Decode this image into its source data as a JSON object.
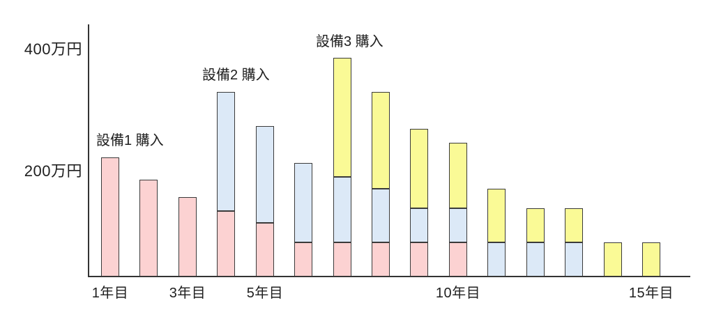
{
  "figure": {
    "background": "#ffffff",
    "y_axis": {
      "labels": [
        {
          "text": "400万円",
          "value": 400
        },
        {
          "text": "200万円",
          "value": 200
        }
      ]
    },
    "x_axis": {
      "labels": [
        {
          "text": "1年目",
          "year": 1
        },
        {
          "text": "3年目",
          "year": 3
        },
        {
          "text": "5年目",
          "year": 5
        },
        {
          "text": "10年目",
          "year": 10
        },
        {
          "text": "15年目",
          "year": 15
        }
      ]
    },
    "annotations": [
      {
        "text": "設備1 購入",
        "year": 1
      },
      {
        "text": "設備2 購入",
        "year": 4
      },
      {
        "text": "設備3 購入",
        "year": 7
      }
    ]
  },
  "chart_data": {
    "type": "bar",
    "stacked": true,
    "title": "",
    "xlabel": "",
    "ylabel": "万円",
    "unit": "万円",
    "x": [
      1,
      2,
      3,
      4,
      5,
      6,
      7,
      8,
      9,
      10,
      11,
      12,
      13,
      14,
      15
    ],
    "x_tick_labels_shown": [
      "1年目",
      "3年目",
      "5年目",
      "10年目",
      "15年目"
    ],
    "x_ticks_shown_at": [
      1,
      3,
      5,
      10,
      15
    ],
    "ylim": [
      0,
      440
    ],
    "y_ticks_labeled": [
      200,
      400
    ],
    "grid": false,
    "legend": false,
    "bar_outline_color": "#3a3a3a",
    "series": [
      {
        "name": "設備1",
        "color": "#fcd2d2",
        "values": [
          210,
          170,
          140,
          115,
          95,
          60,
          60,
          60,
          60,
          60,
          0,
          0,
          0,
          0,
          0
        ]
      },
      {
        "name": "設備2",
        "color": "#dce9f7",
        "values": [
          0,
          0,
          0,
          210,
          170,
          140,
          115,
          95,
          60,
          60,
          60,
          60,
          60,
          0,
          0
        ]
      },
      {
        "name": "設備3",
        "color": "#fafa96",
        "values": [
          0,
          0,
          0,
          0,
          0,
          0,
          210,
          170,
          140,
          115,
          95,
          60,
          60,
          60,
          60
        ]
      }
    ]
  }
}
